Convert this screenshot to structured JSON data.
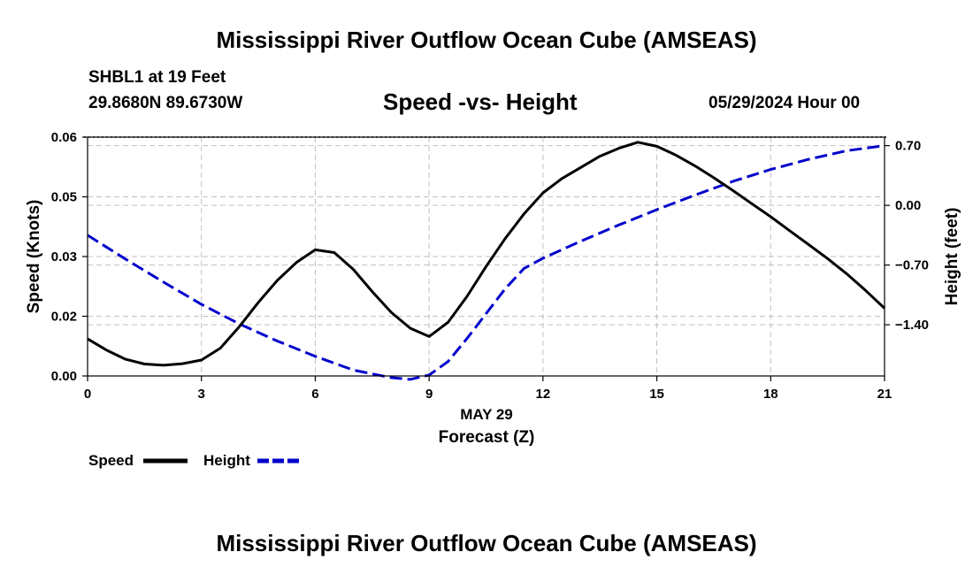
{
  "header": {
    "title": "Mississippi River Outflow Ocean Cube (AMSEAS)",
    "station": "SHBL1 at 19 Feet",
    "coords": "29.8680N  89.6730W",
    "chart_title": "Speed -vs- Height",
    "datetime": "05/29/2024 Hour 00"
  },
  "footer": {
    "title": "Mississippi River Outflow Ocean Cube (AMSEAS)"
  },
  "colors": {
    "speed": "#000000",
    "height": "#0000cc",
    "grid": "#c0c0c0"
  },
  "chart_data": {
    "type": "line",
    "title": "Speed -vs- Height",
    "xlabel": "Forecast (Z)",
    "xlabel_date": "MAY 29",
    "ylabel": "Speed (Knots)",
    "y2label": "Height (feet)",
    "xlim": [
      0,
      21
    ],
    "ylim": [
      0,
      0.06
    ],
    "y2lim": [
      -2.0,
      0.8
    ],
    "x_ticks": [
      0,
      3,
      6,
      9,
      12,
      15,
      18,
      21
    ],
    "x_tick_labels": [
      "0",
      "3",
      "6",
      "9",
      "12",
      "15",
      "18",
      "21"
    ],
    "y_ticks": [
      0,
      0.015,
      0.03,
      0.045,
      0.06
    ],
    "y_tick_labels": [
      "0.00",
      "0.02",
      "0.03",
      "0.05",
      "0.06"
    ],
    "y2_ticks": [
      -1.4,
      -0.7,
      0.0,
      0.7
    ],
    "y2_tick_labels": [
      "-1.40",
      "-0.70",
      "0.00",
      "0.70"
    ],
    "grid": true,
    "legend": [
      {
        "label": "Speed",
        "style": "solid"
      },
      {
        "label": "Height",
        "style": "dashed"
      }
    ],
    "series": [
      {
        "name": "Speed",
        "axis": "left",
        "style": "solid",
        "x": [
          0,
          0.5,
          1,
          1.5,
          2,
          2.5,
          3,
          3.5,
          4,
          4.5,
          5,
          5.5,
          6,
          6.5,
          7,
          7.5,
          8,
          8.5,
          9,
          9.5,
          10,
          10.5,
          11,
          11.5,
          12,
          12.5,
          13,
          13.5,
          14,
          14.5,
          15,
          15.5,
          16,
          16.5,
          17,
          17.5,
          18,
          18.5,
          19,
          19.5,
          20,
          20.5,
          21
        ],
        "values": [
          0.0093,
          0.0065,
          0.0042,
          0.003,
          0.0027,
          0.0031,
          0.004,
          0.007,
          0.0124,
          0.0185,
          0.024,
          0.0285,
          0.0317,
          0.031,
          0.0268,
          0.0212,
          0.016,
          0.012,
          0.0099,
          0.0135,
          0.02,
          0.0275,
          0.0345,
          0.0407,
          0.046,
          0.0496,
          0.0524,
          0.0552,
          0.0572,
          0.0587,
          0.0577,
          0.0555,
          0.0528,
          0.0498,
          0.0466,
          0.0433,
          0.04,
          0.0365,
          0.033,
          0.0295,
          0.0257,
          0.0215,
          0.017
        ]
      },
      {
        "name": "Height",
        "axis": "right",
        "style": "dashed",
        "x": [
          0,
          1,
          2,
          3,
          4,
          5,
          6,
          7,
          8,
          8.5,
          9,
          9.5,
          10,
          10.5,
          11,
          11.5,
          12,
          13,
          14,
          15,
          16,
          17,
          18,
          19,
          20,
          21
        ],
        "values": [
          -0.35,
          -0.63,
          -0.9,
          -1.16,
          -1.39,
          -1.59,
          -1.77,
          -1.93,
          -2.02,
          -2.04,
          -1.99,
          -1.83,
          -1.56,
          -1.27,
          -0.98,
          -0.74,
          -0.62,
          -0.42,
          -0.23,
          -0.05,
          0.12,
          0.28,
          0.42,
          0.54,
          0.64,
          0.7
        ]
      }
    ]
  }
}
